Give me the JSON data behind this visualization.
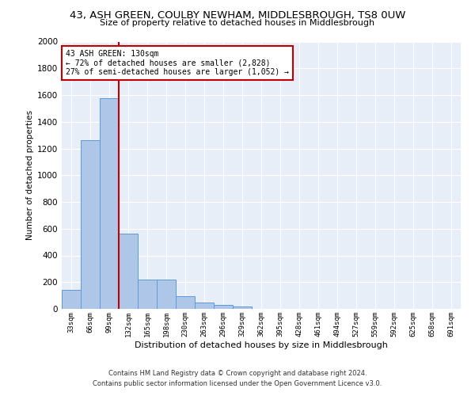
{
  "title": "43, ASH GREEN, COULBY NEWHAM, MIDDLESBROUGH, TS8 0UW",
  "subtitle": "Size of property relative to detached houses in Middlesbrough",
  "xlabel": "Distribution of detached houses by size in Middlesbrough",
  "ylabel": "Number of detached properties",
  "footer_line1": "Contains HM Land Registry data © Crown copyright and database right 2024.",
  "footer_line2": "Contains public sector information licensed under the Open Government Licence v3.0.",
  "bar_labels": [
    "33sqm",
    "66sqm",
    "99sqm",
    "132sqm",
    "165sqm",
    "198sqm",
    "230sqm",
    "263sqm",
    "296sqm",
    "329sqm",
    "362sqm",
    "395sqm",
    "428sqm",
    "461sqm",
    "494sqm",
    "527sqm",
    "559sqm",
    "592sqm",
    "625sqm",
    "658sqm",
    "691sqm"
  ],
  "bar_values": [
    140,
    1265,
    1575,
    565,
    220,
    220,
    95,
    50,
    28,
    18,
    0,
    0,
    0,
    0,
    0,
    0,
    0,
    0,
    0,
    0,
    0
  ],
  "bar_color": "#aec6e8",
  "bar_edge_color": "#5b9bd5",
  "ylim": [
    0,
    2000
  ],
  "yticks": [
    0,
    200,
    400,
    600,
    800,
    1000,
    1200,
    1400,
    1600,
    1800,
    2000
  ],
  "vline_color": "#c00000",
  "annotation_title": "43 ASH GREEN: 130sqm",
  "annotation_line1": "← 72% of detached houses are smaller (2,828)",
  "annotation_line2": "27% of semi-detached houses are larger (1,052) →",
  "annotation_box_color": "#c00000",
  "background_color": "#e8eef8"
}
